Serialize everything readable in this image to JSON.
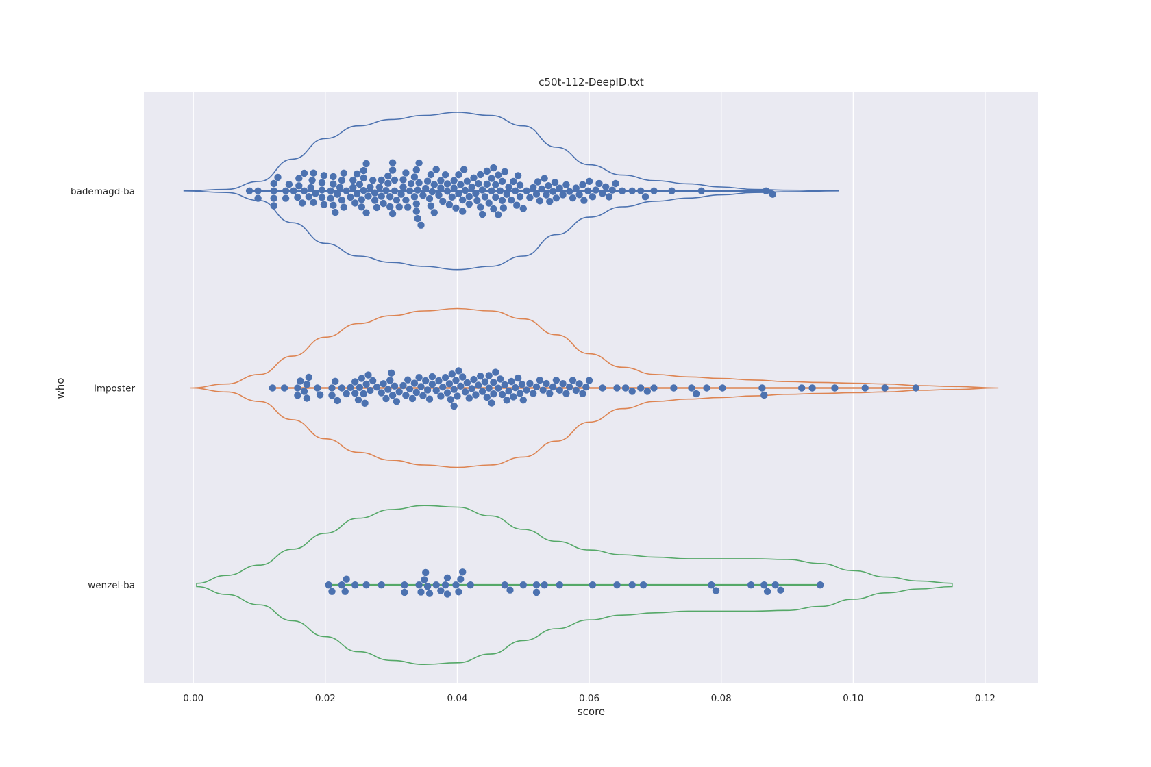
{
  "chart_data": {
    "type": "violin-swarm",
    "title": "c50t-112-DeepID.txt",
    "xlabel": "score",
    "ylabel": "who",
    "xlim": [
      -0.0075,
      0.128
    ],
    "x_ticks": [
      "0.00",
      "0.02",
      "0.04",
      "0.06",
      "0.08",
      "0.10",
      "0.12"
    ],
    "x_tick_values": [
      0.0,
      0.02,
      0.04,
      0.06,
      0.08,
      0.1,
      0.12
    ],
    "grid": true,
    "background_color": "#eaeaf2",
    "point_color": "#4c72b0",
    "categories": [
      "bademagd-ba",
      "imposter",
      "wenzel-ba"
    ],
    "series": [
      {
        "name": "bademagd-ba",
        "color": "#4c72b0",
        "range": [
          -0.0015,
          0.0978
        ],
        "density": [
          [
            -0.0015,
            0.0
          ],
          [
            0.005,
            0.02
          ],
          [
            0.01,
            0.12
          ],
          [
            0.015,
            0.4
          ],
          [
            0.02,
            0.66
          ],
          [
            0.025,
            0.82
          ],
          [
            0.03,
            0.9
          ],
          [
            0.035,
            0.95
          ],
          [
            0.04,
            0.99
          ],
          [
            0.045,
            0.95
          ],
          [
            0.05,
            0.82
          ],
          [
            0.055,
            0.55
          ],
          [
            0.06,
            0.33
          ],
          [
            0.065,
            0.2
          ],
          [
            0.07,
            0.13
          ],
          [
            0.075,
            0.09
          ],
          [
            0.08,
            0.05
          ],
          [
            0.085,
            0.02
          ],
          [
            0.09,
            0.01
          ],
          [
            0.0978,
            0.0
          ]
        ],
        "values": [
          0.0085,
          0.0098,
          0.0098,
          0.0122,
          0.0122,
          0.0122,
          0.0122,
          0.0128,
          0.014,
          0.014,
          0.0145,
          0.0152,
          0.0158,
          0.016,
          0.016,
          0.0165,
          0.0168,
          0.0168,
          0.0175,
          0.0178,
          0.018,
          0.0182,
          0.0182,
          0.0185,
          0.0195,
          0.0195,
          0.0195,
          0.0198,
          0.0198,
          0.0208,
          0.0208,
          0.0212,
          0.0212,
          0.0212,
          0.0215,
          0.0218,
          0.0222,
          0.0225,
          0.0225,
          0.0228,
          0.0228,
          0.0232,
          0.0238,
          0.0242,
          0.0242,
          0.0245,
          0.0248,
          0.0248,
          0.0252,
          0.0255,
          0.0255,
          0.0258,
          0.0258,
          0.0258,
          0.0262,
          0.0262,
          0.0265,
          0.0268,
          0.0272,
          0.0275,
          0.0275,
          0.0278,
          0.0282,
          0.0285,
          0.0285,
          0.0288,
          0.0292,
          0.0295,
          0.0295,
          0.0298,
          0.0298,
          0.0302,
          0.0302,
          0.0302,
          0.0305,
          0.0305,
          0.0308,
          0.0312,
          0.0315,
          0.0318,
          0.0318,
          0.0322,
          0.0322,
          0.0325,
          0.0328,
          0.033,
          0.0335,
          0.0335,
          0.0338,
          0.0338,
          0.0338,
          0.034,
          0.034,
          0.0342,
          0.0342,
          0.0345,
          0.0348,
          0.0352,
          0.0355,
          0.0358,
          0.036,
          0.036,
          0.0362,
          0.0365,
          0.0365,
          0.0368,
          0.0372,
          0.0375,
          0.0375,
          0.0378,
          0.0382,
          0.0385,
          0.0385,
          0.0388,
          0.0392,
          0.0395,
          0.0395,
          0.0398,
          0.0402,
          0.0402,
          0.0405,
          0.0408,
          0.0408,
          0.041,
          0.0412,
          0.0415,
          0.0418,
          0.0418,
          0.0422,
          0.0425,
          0.0428,
          0.043,
          0.0432,
          0.0435,
          0.0435,
          0.0438,
          0.0438,
          0.0442,
          0.0445,
          0.0445,
          0.0448,
          0.0452,
          0.0452,
          0.0455,
          0.0455,
          0.0458,
          0.0458,
          0.0462,
          0.0462,
          0.0465,
          0.0468,
          0.0468,
          0.047,
          0.0472,
          0.0475,
          0.0478,
          0.0482,
          0.0485,
          0.0488,
          0.049,
          0.0492,
          0.0495,
          0.0495,
          0.05,
          0.0505,
          0.051,
          0.0515,
          0.052,
          0.0522,
          0.0525,
          0.0528,
          0.0532,
          0.0535,
          0.0538,
          0.054,
          0.0545,
          0.0548,
          0.055,
          0.0555,
          0.056,
          0.0565,
          0.057,
          0.0575,
          0.058,
          0.0585,
          0.059,
          0.0592,
          0.0598,
          0.06,
          0.0605,
          0.061,
          0.0615,
          0.062,
          0.0625,
          0.063,
          0.0635,
          0.064,
          0.065,
          0.0665,
          0.0678,
          0.0685,
          0.0698,
          0.0725,
          0.077,
          0.0868,
          0.0878
        ]
      },
      {
        "name": "imposter",
        "color": "#dd8452",
        "range": [
          -0.0005,
          0.122
        ],
        "density": [
          [
            -0.0005,
            0.0
          ],
          [
            0.005,
            0.05
          ],
          [
            0.01,
            0.17
          ],
          [
            0.015,
            0.4
          ],
          [
            0.02,
            0.64
          ],
          [
            0.025,
            0.81
          ],
          [
            0.03,
            0.91
          ],
          [
            0.035,
            0.97
          ],
          [
            0.04,
            1.0
          ],
          [
            0.045,
            0.97
          ],
          [
            0.05,
            0.87
          ],
          [
            0.055,
            0.67
          ],
          [
            0.06,
            0.43
          ],
          [
            0.065,
            0.26
          ],
          [
            0.07,
            0.17
          ],
          [
            0.075,
            0.14
          ],
          [
            0.08,
            0.12
          ],
          [
            0.085,
            0.1
          ],
          [
            0.09,
            0.08
          ],
          [
            0.095,
            0.07
          ],
          [
            0.1,
            0.06
          ],
          [
            0.105,
            0.05
          ],
          [
            0.11,
            0.03
          ],
          [
            0.115,
            0.02
          ],
          [
            0.122,
            0.0
          ]
        ],
        "values": [
          0.012,
          0.0138,
          0.0158,
          0.0158,
          0.0162,
          0.0168,
          0.0172,
          0.0172,
          0.0175,
          0.0188,
          0.0192,
          0.021,
          0.021,
          0.0215,
          0.0218,
          0.0225,
          0.0232,
          0.0238,
          0.0245,
          0.0245,
          0.025,
          0.0252,
          0.0255,
          0.0258,
          0.026,
          0.0262,
          0.0265,
          0.0268,
          0.0272,
          0.0278,
          0.0285,
          0.0288,
          0.0292,
          0.0295,
          0.0298,
          0.03,
          0.0302,
          0.0305,
          0.0308,
          0.0312,
          0.0318,
          0.0322,
          0.0325,
          0.0328,
          0.0332,
          0.0335,
          0.0338,
          0.0342,
          0.0345,
          0.0348,
          0.0352,
          0.0355,
          0.0358,
          0.0362,
          0.0362,
          0.0368,
          0.0372,
          0.0375,
          0.0378,
          0.0382,
          0.0385,
          0.0388,
          0.039,
          0.0392,
          0.0395,
          0.0395,
          0.0398,
          0.04,
          0.0402,
          0.0405,
          0.0408,
          0.0412,
          0.0415,
          0.0418,
          0.0422,
          0.0425,
          0.0428,
          0.0432,
          0.0435,
          0.0438,
          0.0442,
          0.0445,
          0.0448,
          0.0448,
          0.0452,
          0.0455,
          0.0455,
          0.0458,
          0.0462,
          0.0465,
          0.0468,
          0.0472,
          0.0475,
          0.0478,
          0.0482,
          0.0485,
          0.0488,
          0.0492,
          0.0495,
          0.0498,
          0.05,
          0.0505,
          0.051,
          0.0515,
          0.052,
          0.0525,
          0.053,
          0.0535,
          0.054,
          0.0545,
          0.055,
          0.0555,
          0.056,
          0.0565,
          0.057,
          0.0575,
          0.058,
          0.0585,
          0.059,
          0.0595,
          0.06,
          0.062,
          0.0642,
          0.0655,
          0.0665,
          0.0678,
          0.0688,
          0.0698,
          0.0728,
          0.0755,
          0.0762,
          0.0778,
          0.0802,
          0.0862,
          0.0865,
          0.0922,
          0.0938,
          0.0972,
          0.1018,
          0.1048,
          0.1095
        ]
      },
      {
        "name": "wenzel-ba",
        "color": "#55a868",
        "range": [
          0.0005,
          0.115
        ],
        "density": [
          [
            0.0005,
            0.02
          ],
          [
            0.005,
            0.12
          ],
          [
            0.01,
            0.25
          ],
          [
            0.015,
            0.45
          ],
          [
            0.02,
            0.65
          ],
          [
            0.025,
            0.84
          ],
          [
            0.03,
            0.95
          ],
          [
            0.035,
            1.0
          ],
          [
            0.04,
            0.98
          ],
          [
            0.045,
            0.87
          ],
          [
            0.05,
            0.7
          ],
          [
            0.055,
            0.55
          ],
          [
            0.06,
            0.44
          ],
          [
            0.065,
            0.38
          ],
          [
            0.07,
            0.35
          ],
          [
            0.075,
            0.33
          ],
          [
            0.08,
            0.33
          ],
          [
            0.085,
            0.33
          ],
          [
            0.09,
            0.32
          ],
          [
            0.095,
            0.27
          ],
          [
            0.1,
            0.18
          ],
          [
            0.105,
            0.1
          ],
          [
            0.11,
            0.05
          ],
          [
            0.115,
            0.02
          ]
        ],
        "values": [
          0.0205,
          0.021,
          0.0225,
          0.023,
          0.0232,
          0.0245,
          0.0262,
          0.0285,
          0.032,
          0.032,
          0.0342,
          0.0345,
          0.035,
          0.0352,
          0.0355,
          0.0358,
          0.0368,
          0.0375,
          0.0382,
          0.0385,
          0.0385,
          0.0398,
          0.0402,
          0.0405,
          0.0408,
          0.042,
          0.0472,
          0.048,
          0.05,
          0.052,
          0.052,
          0.0532,
          0.0555,
          0.0605,
          0.0642,
          0.0665,
          0.0682,
          0.0785,
          0.0792,
          0.0845,
          0.0865,
          0.087,
          0.0882,
          0.089,
          0.095
        ]
      }
    ]
  }
}
